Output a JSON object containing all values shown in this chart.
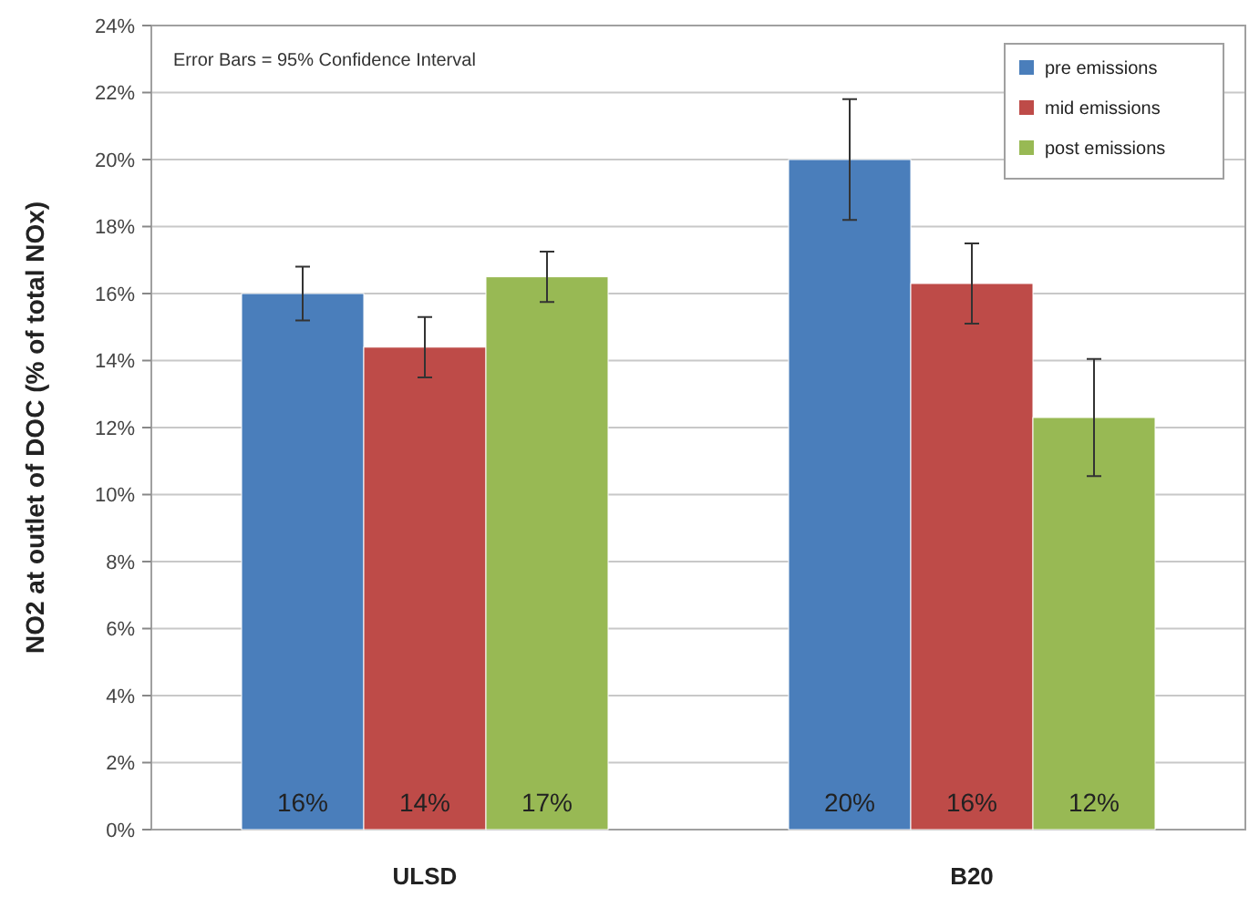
{
  "chart_data": {
    "type": "bar",
    "ylabel": "NO2 at outlet of DOC (% of total NOx)",
    "categories": [
      "ULSD",
      "B20"
    ],
    "series": [
      {
        "name": "pre emissions",
        "color": "#4a7ebb",
        "values": [
          16,
          20
        ],
        "errors": [
          0.8,
          1.8
        ],
        "value_labels": [
          "16%",
          "20%"
        ]
      },
      {
        "name": "mid emissions",
        "color": "#be4b48",
        "values": [
          14.4,
          16.3
        ],
        "errors": [
          0.9,
          1.2
        ],
        "value_labels": [
          "14%",
          "16%"
        ]
      },
      {
        "name": "post emissions",
        "color": "#98b954",
        "values": [
          16.5,
          12.3
        ],
        "errors": [
          0.75,
          1.75
        ],
        "value_labels": [
          "17%",
          "12%"
        ]
      }
    ],
    "ylim": [
      0,
      24
    ],
    "yticks": [
      {
        "value": 0,
        "label": "0%"
      },
      {
        "value": 2,
        "label": "2%"
      },
      {
        "value": 4,
        "label": "4%"
      },
      {
        "value": 6,
        "label": "6%"
      },
      {
        "value": 8,
        "label": "8%"
      },
      {
        "value": 10,
        "label": "10%"
      },
      {
        "value": 12,
        "label": "12%"
      },
      {
        "value": 14,
        "label": "14%"
      },
      {
        "value": 16,
        "label": "16%"
      },
      {
        "value": 18,
        "label": "18%"
      },
      {
        "value": 20,
        "label": "20%"
      },
      {
        "value": 22,
        "label": "22%"
      },
      {
        "value": 24,
        "label": "24%"
      }
    ],
    "grid": "y",
    "legend": "top right",
    "annotations": [
      "Error Bars = 95% Confidence Interval"
    ]
  }
}
